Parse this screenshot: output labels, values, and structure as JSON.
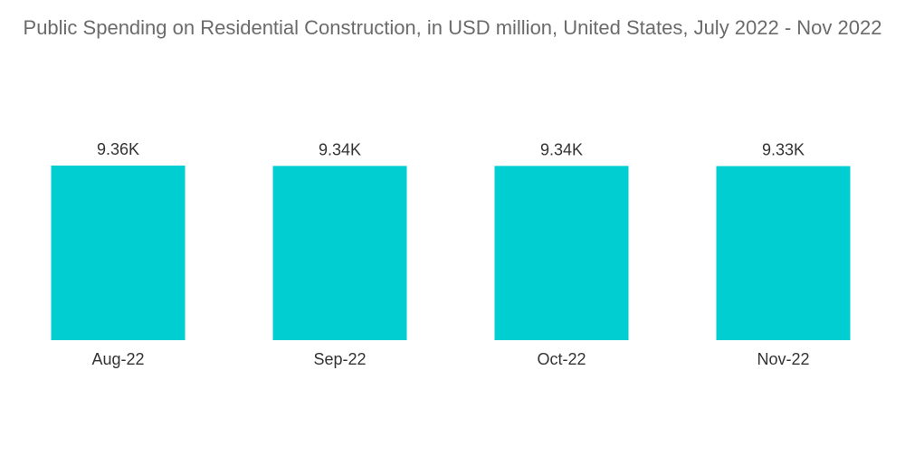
{
  "chart_data": {
    "type": "bar",
    "title": "Public Spending on Residential Construction, in USD million, United States, July 2022 - Nov 2022",
    "categories": [
      "Aug-22",
      "Sep-22",
      "Oct-22",
      "Nov-22"
    ],
    "values": [
      9360,
      9340,
      9340,
      9330
    ],
    "data_labels": [
      "9.36K",
      "9.34K",
      "9.34K",
      "9.33K"
    ],
    "xlabel": "",
    "ylabel": "",
    "bar_color": "#00ced1",
    "grid": false,
    "legend": "none",
    "y_axis_visible": false
  }
}
